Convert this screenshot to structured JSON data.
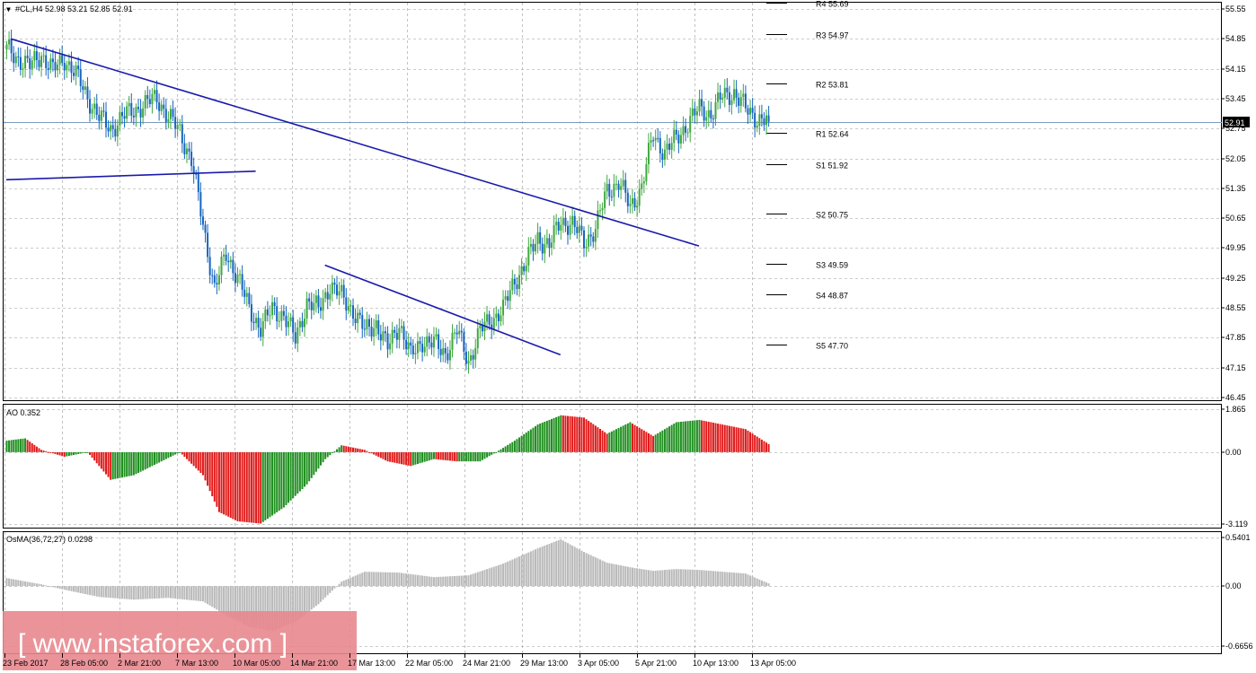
{
  "header": {
    "symbol_line": "#CL,H4  52.98 53.21 52.85 52.91",
    "current_price_label": "52.91"
  },
  "watermark": {
    "text": "[ www.instaforex.com ]"
  },
  "colors": {
    "candle_up": "#3fa83f",
    "candle_down": "#1565c0",
    "trendline": "#1a1aaa",
    "ao_up": "#1f8f1f",
    "ao_down": "#e01818",
    "osma": "#b9b9b9",
    "grid": "#9a9a9a",
    "watermark_bg": "#e8888f"
  },
  "x_axis": {
    "labels": [
      "23 Feb 2017",
      "28 Feb 05:00",
      "2 Mar 21:00",
      "7 Mar 13:00",
      "10 Mar 05:00",
      "14 Mar 21:00",
      "17 Mar 13:00",
      "22 Mar 05:00",
      "24 Mar 21:00",
      "29 Mar 13:00",
      "3 Apr 05:00",
      "5 Apr 21:00",
      "10 Apr 13:00",
      "13 Apr 05:00"
    ]
  },
  "chart_data": [
    {
      "type": "candlestick",
      "title": "#CL,H4",
      "y_ticks": [
        "55.55",
        "54.85",
        "54.15",
        "53.45",
        "52.75",
        "52.05",
        "51.35",
        "50.65",
        "49.95",
        "49.25",
        "48.55",
        "47.85",
        "47.15",
        "46.45"
      ],
      "ylim": [
        46.45,
        55.55
      ],
      "pivot_levels": [
        {
          "label": "R4 55.69",
          "value": 55.69
        },
        {
          "label": "R3 54.97",
          "value": 54.97
        },
        {
          "label": "R2 53.81",
          "value": 53.81
        },
        {
          "label": "R1 52.64",
          "value": 52.64
        },
        {
          "label": "S1 51.92",
          "value": 51.92
        },
        {
          "label": "S2 50.75",
          "value": 50.75
        },
        {
          "label": "S3 49.59",
          "value": 49.59
        },
        {
          "label": "S4 48.87",
          "value": 48.87
        },
        {
          "label": "S5 47.70",
          "value": 47.7
        }
      ],
      "current_price": 52.91,
      "close_path": [
        [
          0,
          54.6
        ],
        [
          5,
          54.4
        ],
        [
          10,
          54.2
        ],
        [
          15,
          54.5
        ],
        [
          20,
          54.1
        ],
        [
          25,
          54.4
        ],
        [
          30,
          54.0
        ],
        [
          35,
          53.5
        ],
        [
          40,
          53.0
        ],
        [
          45,
          52.75
        ],
        [
          50,
          53.0
        ],
        [
          55,
          53.2
        ],
        [
          60,
          53.3
        ],
        [
          65,
          53.5
        ],
        [
          70,
          53.0
        ],
        [
          75,
          52.7
        ],
        [
          80,
          52.0
        ],
        [
          85,
          50.5
        ],
        [
          90,
          49.0
        ],
        [
          95,
          49.8
        ],
        [
          100,
          49.3
        ],
        [
          105,
          48.5
        ],
        [
          110,
          48.1
        ],
        [
          115,
          48.5
        ],
        [
          120,
          48.4
        ],
        [
          125,
          47.8
        ],
        [
          130,
          48.7
        ],
        [
          135,
          48.5
        ],
        [
          140,
          49.1
        ],
        [
          145,
          48.8
        ],
        [
          150,
          48.5
        ],
        [
          155,
          48.0
        ],
        [
          160,
          48.2
        ],
        [
          165,
          47.6
        ],
        [
          170,
          48.2
        ],
        [
          175,
          47.4
        ],
        [
          180,
          47.8
        ],
        [
          185,
          47.7
        ],
        [
          190,
          47.5
        ],
        [
          195,
          48.0
        ],
        [
          200,
          47.3
        ],
        [
          205,
          48.0
        ],
        [
          210,
          48.3
        ],
        [
          215,
          48.5
        ],
        [
          220,
          49.2
        ],
        [
          225,
          49.6
        ],
        [
          230,
          50.2
        ],
        [
          235,
          50.0
        ],
        [
          240,
          50.6
        ],
        [
          245,
          50.5
        ],
        [
          250,
          50.1
        ],
        [
          255,
          50.4
        ],
        [
          260,
          51.3
        ],
        [
          265,
          51.5
        ],
        [
          270,
          50.9
        ],
        [
          275,
          51.4
        ],
        [
          280,
          52.6
        ],
        [
          285,
          52.2
        ],
        [
          290,
          52.5
        ],
        [
          295,
          52.9
        ],
        [
          300,
          53.2
        ],
        [
          305,
          53.1
        ],
        [
          310,
          53.5
        ],
        [
          315,
          53.6
        ],
        [
          320,
          53.2
        ],
        [
          325,
          53.0
        ],
        [
          330,
          52.91
        ]
      ],
      "trendlines": [
        {
          "from": [
            2,
            54.85
          ],
          "to": [
            300,
            50.0
          ]
        },
        {
          "from": [
            0,
            51.55
          ],
          "to": [
            108,
            51.75
          ]
        },
        {
          "from": [
            138,
            49.55
          ],
          "to": [
            240,
            47.45
          ]
        }
      ]
    },
    {
      "type": "histogram",
      "title": "AO 0.352",
      "y_ticks": [
        "1.865",
        "0.00",
        "-3.119"
      ],
      "ylim": [
        -3.119,
        1.865
      ],
      "values_path": [
        [
          0,
          0.5
        ],
        [
          8,
          0.6
        ],
        [
          15,
          0.1
        ],
        [
          25,
          -0.2
        ],
        [
          35,
          0.0
        ],
        [
          45,
          -1.2
        ],
        [
          55,
          -1.0
        ],
        [
          65,
          -0.5
        ],
        [
          75,
          0.0
        ],
        [
          85,
          -1.0
        ],
        [
          92,
          -2.6
        ],
        [
          100,
          -3.0
        ],
        [
          110,
          -3.1
        ],
        [
          120,
          -2.4
        ],
        [
          130,
          -1.4
        ],
        [
          138,
          -0.3
        ],
        [
          145,
          0.3
        ],
        [
          155,
          0.1
        ],
        [
          165,
          -0.4
        ],
        [
          175,
          -0.6
        ],
        [
          185,
          -0.3
        ],
        [
          195,
          -0.4
        ],
        [
          205,
          -0.4
        ],
        [
          212,
          0.0
        ],
        [
          220,
          0.5
        ],
        [
          230,
          1.2
        ],
        [
          240,
          1.6
        ],
        [
          250,
          1.5
        ],
        [
          260,
          0.8
        ],
        [
          270,
          1.3
        ],
        [
          280,
          0.7
        ],
        [
          290,
          1.3
        ],
        [
          300,
          1.4
        ],
        [
          310,
          1.2
        ],
        [
          320,
          1.0
        ],
        [
          330,
          0.352
        ]
      ]
    },
    {
      "type": "histogram",
      "title": "OsMA(36,72,27) 0.0298",
      "y_ticks": [
        "0.5401",
        "0.00",
        "-0.6656"
      ],
      "ylim": [
        -0.6656,
        0.5401
      ],
      "values_path": [
        [
          0,
          0.09
        ],
        [
          15,
          0.02
        ],
        [
          25,
          -0.04
        ],
        [
          40,
          -0.12
        ],
        [
          55,
          -0.15
        ],
        [
          70,
          -0.13
        ],
        [
          85,
          -0.17
        ],
        [
          95,
          -0.32
        ],
        [
          105,
          -0.45
        ],
        [
          115,
          -0.5
        ],
        [
          125,
          -0.4
        ],
        [
          135,
          -0.2
        ],
        [
          145,
          0.05
        ],
        [
          155,
          0.16
        ],
        [
          170,
          0.15
        ],
        [
          185,
          0.1
        ],
        [
          200,
          0.12
        ],
        [
          215,
          0.25
        ],
        [
          230,
          0.42
        ],
        [
          240,
          0.52
        ],
        [
          250,
          0.38
        ],
        [
          260,
          0.26
        ],
        [
          270,
          0.21
        ],
        [
          280,
          0.17
        ],
        [
          290,
          0.19
        ],
        [
          300,
          0.18
        ],
        [
          310,
          0.16
        ],
        [
          320,
          0.14
        ],
        [
          330,
          0.03
        ]
      ]
    }
  ]
}
